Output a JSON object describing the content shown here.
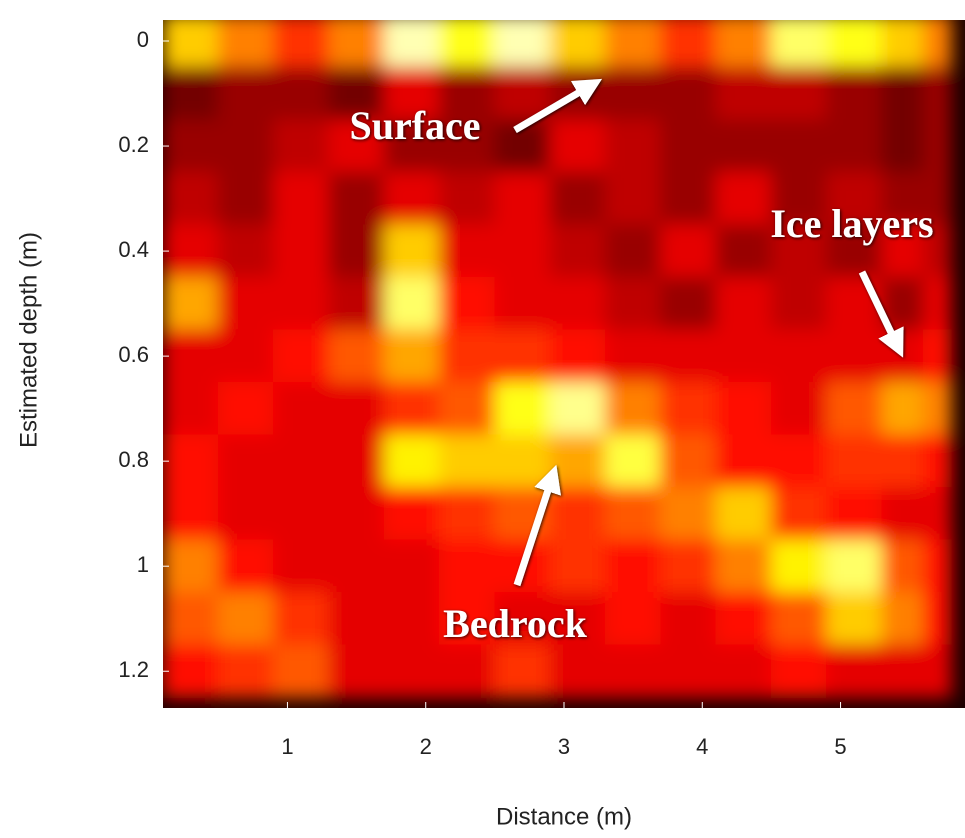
{
  "chart_data": {
    "type": "heatmap",
    "xlabel": "Distance (m)",
    "ylabel": "Estimated depth (m)",
    "x": [
      0.3,
      0.7,
      1.1,
      1.5,
      1.9,
      2.3,
      2.7,
      3.1,
      3.5,
      3.9,
      4.3,
      4.7,
      5.1,
      5.5,
      5.7
    ],
    "y": [
      0,
      0.1,
      0.2,
      0.3,
      0.4,
      0.5,
      0.6,
      0.7,
      0.8,
      0.9,
      1,
      1.1,
      1.2
    ],
    "z": [
      [
        0.6,
        0.5,
        0.4,
        0.5,
        0.9,
        0.7,
        0.9,
        0.6,
        0.5,
        0.4,
        0.5,
        0.8,
        0.7,
        0.6,
        0.5
      ],
      [
        0.15,
        0.2,
        0.2,
        0.15,
        0.3,
        0.2,
        0.25,
        0.2,
        0.2,
        0.2,
        0.25,
        0.25,
        0.2,
        0.15,
        0.2
      ],
      [
        0.2,
        0.2,
        0.25,
        0.3,
        0.2,
        0.2,
        0.15,
        0.3,
        0.25,
        0.2,
        0.2,
        0.2,
        0.2,
        0.15,
        0.2
      ],
      [
        0.25,
        0.2,
        0.3,
        0.2,
        0.3,
        0.25,
        0.3,
        0.2,
        0.25,
        0.2,
        0.3,
        0.2,
        0.25,
        0.2,
        0.2
      ],
      [
        0.3,
        0.25,
        0.3,
        0.2,
        0.6,
        0.3,
        0.3,
        0.25,
        0.2,
        0.3,
        0.2,
        0.25,
        0.2,
        0.3,
        0.25
      ],
      [
        0.55,
        0.3,
        0.3,
        0.25,
        0.8,
        0.35,
        0.3,
        0.3,
        0.25,
        0.2,
        0.3,
        0.25,
        0.3,
        0.2,
        0.3
      ],
      [
        0.3,
        0.3,
        0.35,
        0.45,
        0.55,
        0.4,
        0.4,
        0.35,
        0.3,
        0.3,
        0.3,
        0.3,
        0.3,
        0.3,
        0.35
      ],
      [
        0.3,
        0.35,
        0.3,
        0.3,
        0.4,
        0.45,
        0.7,
        0.85,
        0.5,
        0.4,
        0.35,
        0.3,
        0.45,
        0.55,
        0.5
      ],
      [
        0.35,
        0.3,
        0.3,
        0.3,
        0.65,
        0.6,
        0.6,
        0.55,
        0.75,
        0.45,
        0.35,
        0.35,
        0.4,
        0.4,
        0.35
      ],
      [
        0.35,
        0.3,
        0.3,
        0.3,
        0.35,
        0.4,
        0.45,
        0.4,
        0.45,
        0.5,
        0.6,
        0.4,
        0.35,
        0.3,
        0.3
      ],
      [
        0.5,
        0.35,
        0.3,
        0.3,
        0.3,
        0.35,
        0.35,
        0.4,
        0.35,
        0.4,
        0.5,
        0.65,
        0.8,
        0.45,
        0.35
      ],
      [
        0.45,
        0.5,
        0.4,
        0.3,
        0.3,
        0.35,
        0.3,
        0.3,
        0.35,
        0.3,
        0.35,
        0.45,
        0.6,
        0.5,
        0.35
      ],
      [
        0.35,
        0.4,
        0.45,
        0.3,
        0.3,
        0.3,
        0.4,
        0.3,
        0.3,
        0.3,
        0.3,
        0.35,
        0.3,
        0.3,
        0.3
      ]
    ],
    "xlim": [
      0.1,
      5.9
    ],
    "ylim": [
      1.27,
      -0.04
    ],
    "xticks": [
      1,
      2,
      3,
      4,
      5
    ],
    "yticks": [
      0,
      0.2,
      0.4,
      0.6,
      0.8,
      1,
      1.2
    ],
    "colormap": "hot",
    "annotations": [
      "Surface",
      "Ice layers",
      "Bedrock"
    ]
  }
}
